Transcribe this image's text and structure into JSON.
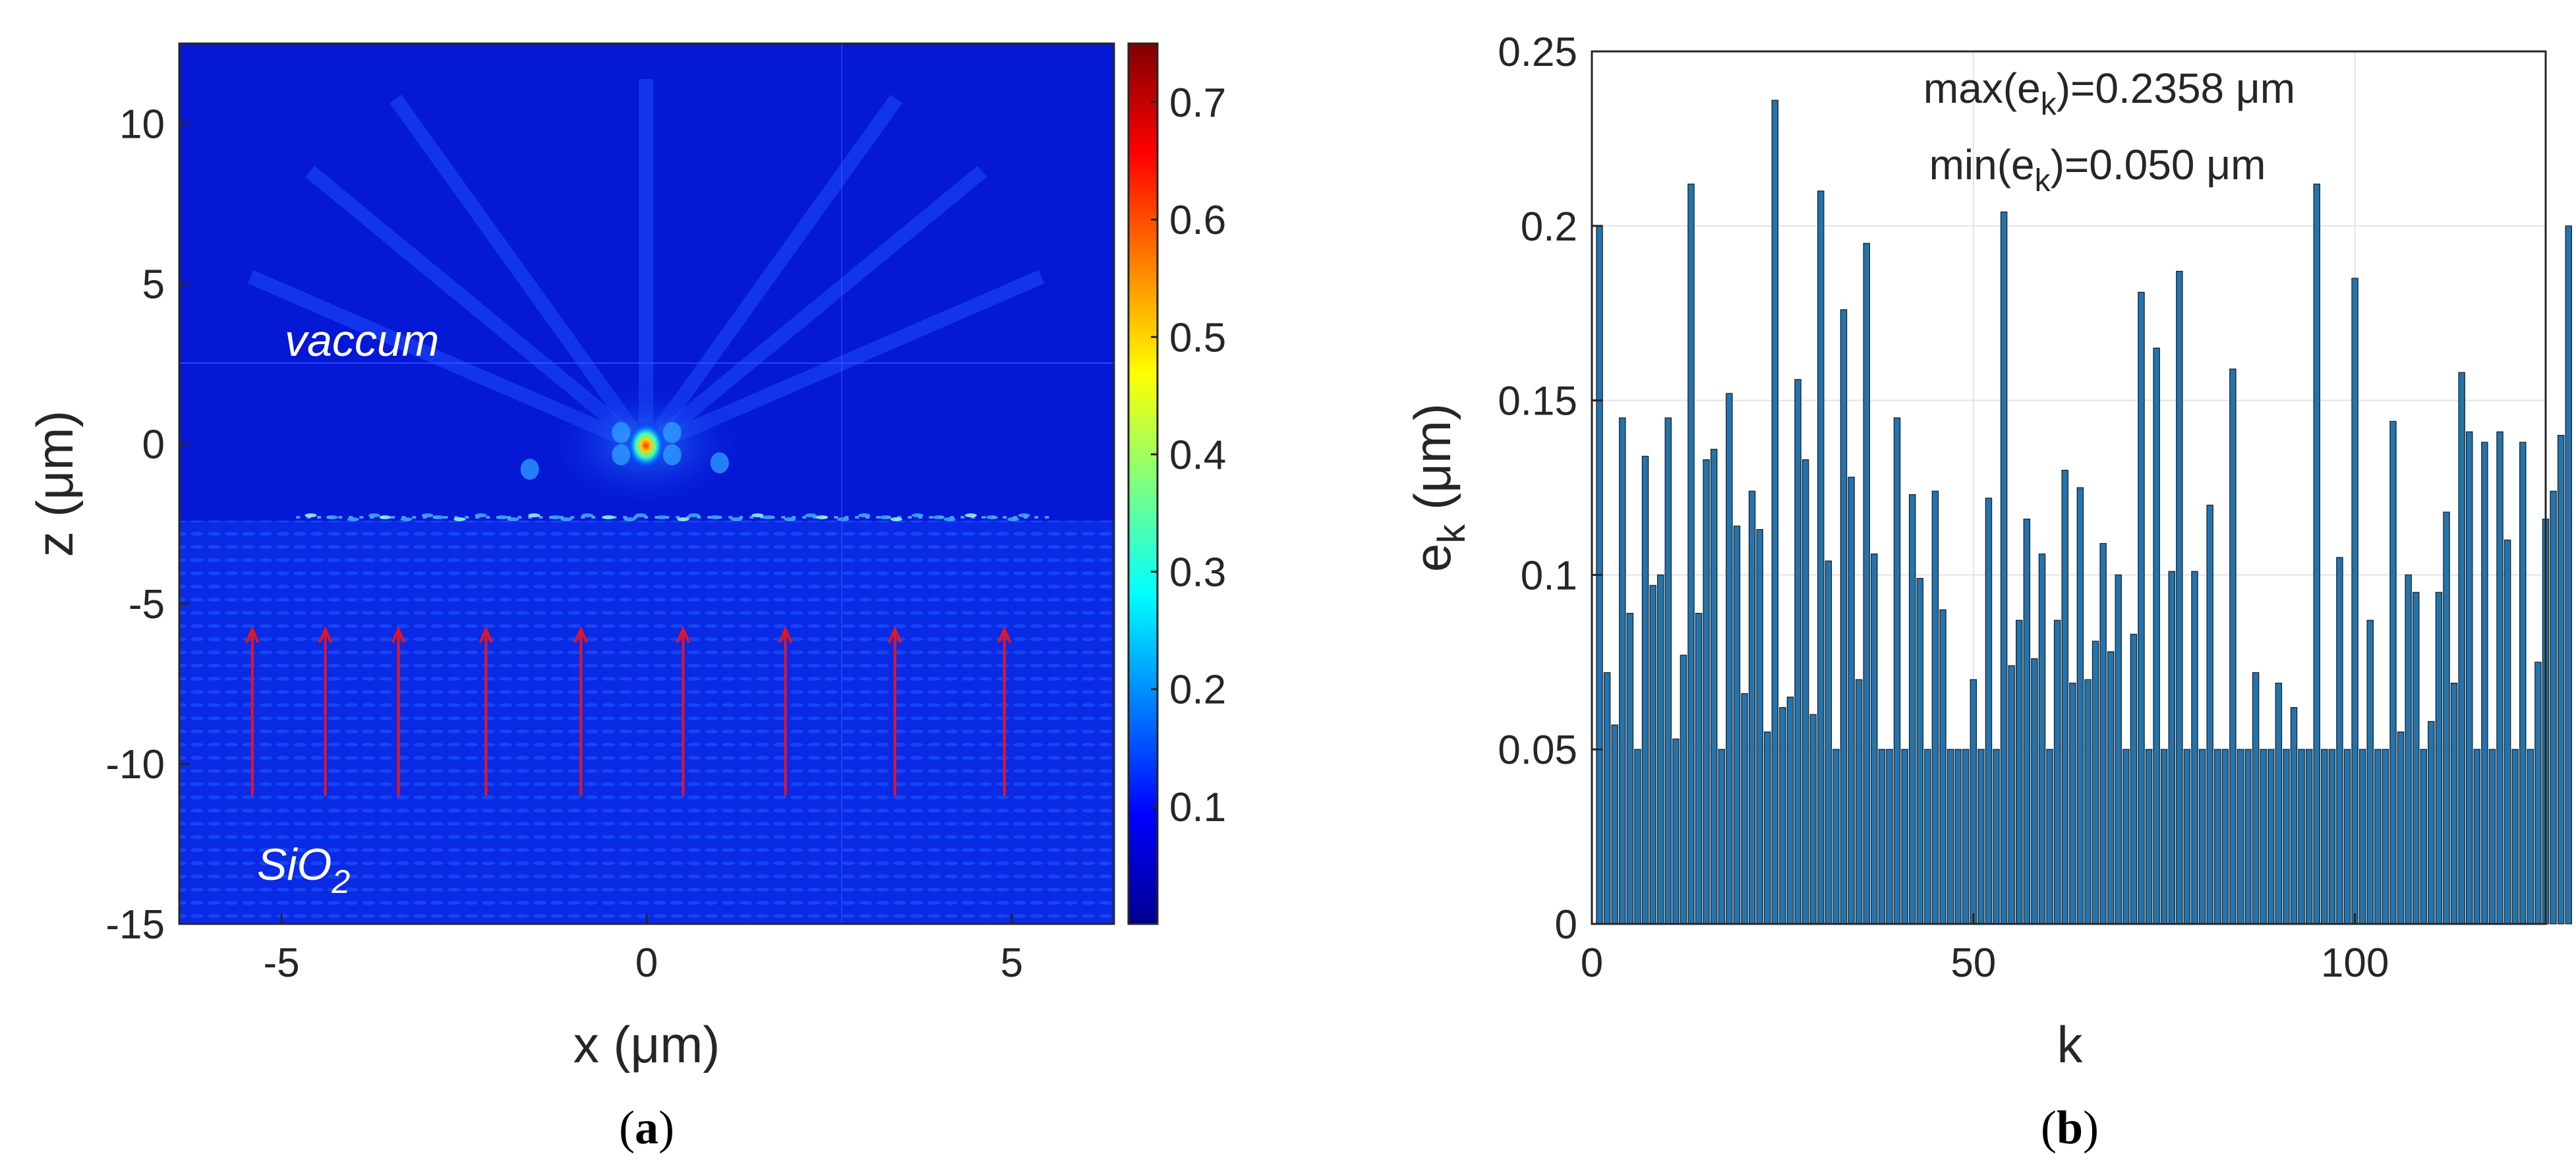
{
  "chart_data": [
    {
      "type": "heatmap",
      "panel_label": "a",
      "xlabel": "x (μm)",
      "ylabel": "z (μm)",
      "xlim": [
        -6.4,
        6.4
      ],
      "ylim": [
        -15,
        12.5
      ],
      "x_ticks": [
        -5,
        0,
        5
      ],
      "x_tick_labels": [
        "-5",
        "0",
        "5"
      ],
      "y_ticks": [
        10,
        5,
        0,
        -5,
        -10,
        -15
      ],
      "y_tick_labels": [
        "10",
        "5",
        "0",
        "-5",
        "-10",
        "-15"
      ],
      "colorbar": {
        "colormap": "jet",
        "range": [
          0,
          0.75
        ],
        "ticks": [
          0.1,
          0.2,
          0.3,
          0.4,
          0.5,
          0.6,
          0.7
        ],
        "tick_labels": [
          "0.1",
          "0.2",
          "0.3",
          "0.4",
          "0.5",
          "0.6",
          "0.7"
        ]
      },
      "interface_z": -2.3,
      "focus": {
        "x": 0,
        "z": 0
      },
      "annotations": {
        "upper_region": "vaccum",
        "lower_region_main": "SiO",
        "lower_region_sub": "2"
      },
      "arrows_x": [
        -5.4,
        -4.4,
        -3.4,
        -2.2,
        -0.9,
        0.5,
        1.9,
        3.4,
        4.9
      ],
      "arrow_z_range": [
        -11,
        -5.8
      ]
    },
    {
      "type": "bar",
      "panel_label": "b",
      "xlabel": "k",
      "ylabel_main": "e",
      "ylabel_sub": "k",
      "ylabel_unit": " (μm)",
      "xlim": [
        0,
        125
      ],
      "ylim": [
        0,
        0.25
      ],
      "x_ticks": [
        0,
        50,
        100
      ],
      "x_tick_labels": [
        "0",
        "50",
        "100"
      ],
      "y_ticks": [
        0,
        0.05,
        0.1,
        0.15,
        0.2,
        0.25
      ],
      "y_tick_labels": [
        "0",
        "0.05",
        "0.1",
        "0.15",
        "0.2",
        "0.25"
      ],
      "grid": true,
      "bar_color": "#2274ae",
      "annotation_max": {
        "pre": "max(e",
        "sub": "k",
        "post": ")=0.2358 μm"
      },
      "annotation_min": {
        "pre": "min(e",
        "sub": "k",
        "post": ")=0.050 μm"
      },
      "values": [
        0.2,
        0.072,
        0.057,
        0.145,
        0.089,
        0.05,
        0.134,
        0.097,
        0.1,
        0.145,
        0.053,
        0.077,
        0.212,
        0.089,
        0.133,
        0.136,
        0.05,
        0.152,
        0.114,
        0.066,
        0.124,
        0.113,
        0.055,
        0.236,
        0.062,
        0.065,
        0.156,
        0.133,
        0.06,
        0.21,
        0.104,
        0.05,
        0.176,
        0.128,
        0.07,
        0.195,
        0.106,
        0.05,
        0.05,
        0.145,
        0.05,
        0.123,
        0.099,
        0.05,
        0.124,
        0.09,
        0.05,
        0.05,
        0.05,
        0.07,
        0.05,
        0.122,
        0.05,
        0.204,
        0.074,
        0.087,
        0.116,
        0.076,
        0.106,
        0.05,
        0.087,
        0.13,
        0.069,
        0.125,
        0.07,
        0.081,
        0.109,
        0.078,
        0.1,
        0.05,
        0.083,
        0.181,
        0.05,
        0.165,
        0.05,
        0.101,
        0.187,
        0.05,
        0.101,
        0.05,
        0.12,
        0.05,
        0.05,
        0.159,
        0.05,
        0.05,
        0.072,
        0.05,
        0.05,
        0.069,
        0.05,
        0.062,
        0.05,
        0.05,
        0.212,
        0.05,
        0.05,
        0.105,
        0.05,
        0.185,
        0.05,
        0.087,
        0.05,
        0.05,
        0.144,
        0.055,
        0.1,
        0.095,
        0.05,
        0.058,
        0.095,
        0.118,
        0.069,
        0.158,
        0.141,
        0.05,
        0.138,
        0.05,
        0.141,
        0.11,
        0.05,
        0.138,
        0.05,
        0.075,
        0.116,
        0.124,
        0.14,
        0.2
      ]
    }
  ]
}
